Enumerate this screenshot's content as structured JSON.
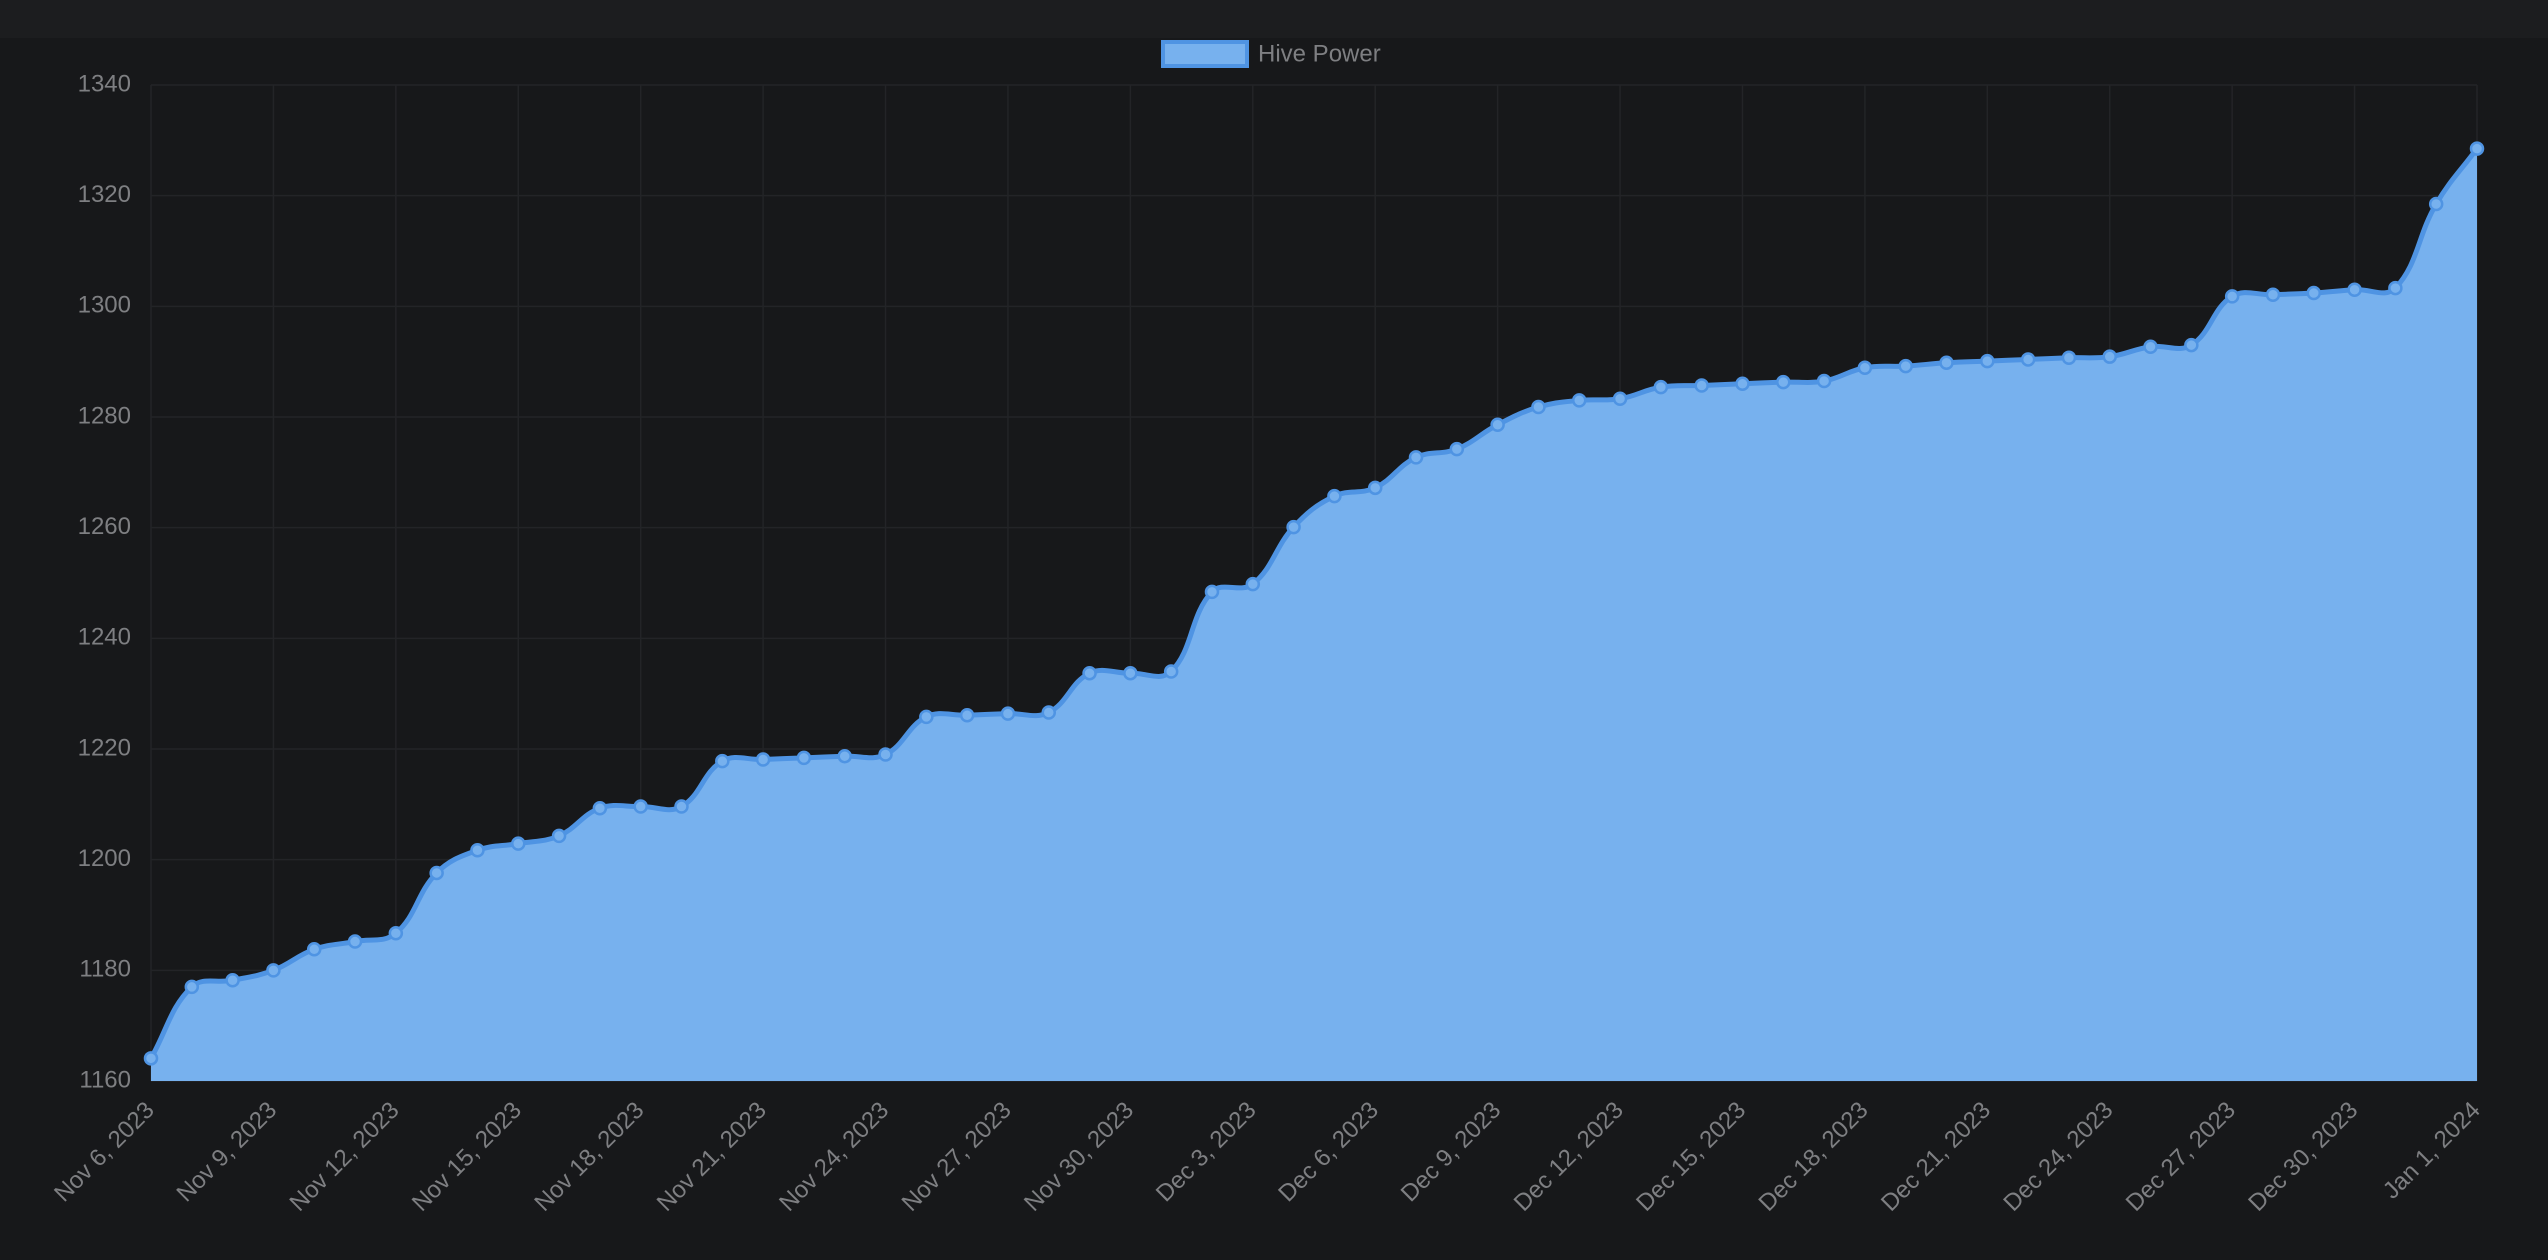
{
  "chart_data": {
    "type": "area",
    "categories": [
      "Nov 6, 2023",
      null,
      null,
      "Nov 9, 2023",
      null,
      null,
      "Nov 12, 2023",
      null,
      null,
      "Nov 15, 2023",
      null,
      null,
      "Nov 18, 2023",
      null,
      null,
      "Nov 21, 2023",
      null,
      null,
      "Nov 24, 2023",
      null,
      null,
      "Nov 27, 2023",
      null,
      null,
      "Nov 30, 2023",
      null,
      null,
      "Dec 3, 2023",
      null,
      null,
      "Dec 6, 2023",
      null,
      null,
      "Dec 9, 2023",
      null,
      null,
      "Dec 12, 2023",
      null,
      null,
      "Dec 15, 2023",
      null,
      null,
      "Dec 18, 2023",
      null,
      null,
      "Dec 21, 2023",
      null,
      null,
      "Dec 24, 2023",
      null,
      null,
      "Dec 27, 2023",
      null,
      null,
      "Dec 30, 2023",
      null,
      null,
      "Jan 1, 2024"
    ],
    "series": [
      {
        "name": "Hive Power",
        "color": "#4f94e3",
        "fill": "#77b1ee",
        "values": [
          1164.1,
          1177,
          1178.2,
          1180,
          1183.8,
          1185.2,
          1186.7,
          1197.6,
          1201.7,
          1202.9,
          1204.3,
          1209.3,
          1209.6,
          1209.6,
          1217.8,
          1218.1,
          1218.4,
          1218.7,
          1219,
          1225.8,
          1226.1,
          1226.4,
          1226.6,
          1233.7,
          1233.7,
          1234,
          1248.4,
          1249.8,
          1260.1,
          1265.7,
          1267.2,
          1272.7,
          1274.2,
          1278.6,
          1281.8,
          1283,
          1283.3,
          1285.4,
          1285.7,
          1286,
          1286.3,
          1286.5,
          1288.9,
          1289.2,
          1289.8,
          1290.1,
          1290.4,
          1290.7,
          1290.9,
          1292.7,
          1293,
          1301.8,
          1302.1,
          1302.4,
          1303,
          1303.3,
          1318.5,
          1328.5
        ]
      }
    ],
    "ylim": [
      1160,
      1340
    ],
    "yticks": [
      1160,
      1180,
      1200,
      1220,
      1240,
      1260,
      1280,
      1300,
      1320,
      1340
    ],
    "grid": true,
    "legend": "top"
  }
}
